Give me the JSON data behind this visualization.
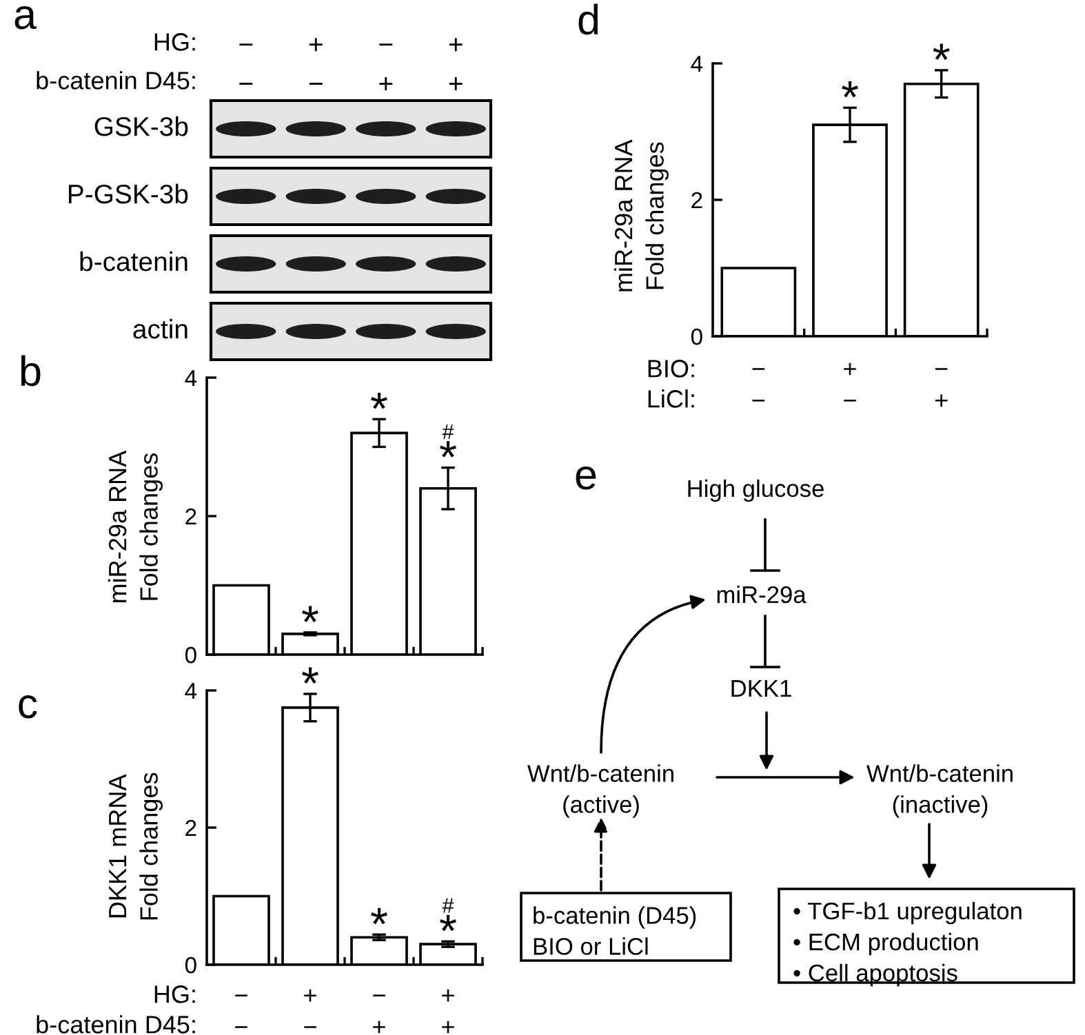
{
  "chart_data": [
    {
      "type": "other",
      "title": "a",
      "categories": [
        "−\n−",
        "+\n−",
        "−\n+",
        "+\n+"
      ],
      "y_categories": [
        "GSK-3b",
        "P-GSK-3b",
        "b-catenin",
        "actin"
      ],
      "annotations": [
        "HG:",
        "b-catenin D45:"
      ]
    },
    {
      "type": "bar",
      "title": "b",
      "categories": [
        "−\n−",
        "+\n−",
        "−\n+",
        "+\n+"
      ],
      "values": [
        1.0,
        0.3,
        3.2,
        2.4
      ],
      "errors": [
        null,
        0.02,
        0.2,
        0.3
      ],
      "color": "#ffffff",
      "ylabel": "miR-29a RNA\nFold changes",
      "ylim": [
        0,
        4
      ],
      "yticks": [
        0,
        2,
        4
      ],
      "tick_labels": "y",
      "annotations": [
        {
          "text": "*",
          "x": "+\n−",
          "y": 0.3
        },
        {
          "text": "*",
          "x": "−\n+",
          "y": 3.2
        },
        {
          "text": "*",
          "x": "+\n+",
          "y": 2.4
        },
        {
          "text": "#",
          "x": "+\n+",
          "y": 2.4
        }
      ]
    },
    {
      "type": "bar",
      "title": "c",
      "categories": [
        "−\n−",
        "+\n−",
        "−\n+",
        "+\n+"
      ],
      "values": [
        1.0,
        3.75,
        0.4,
        0.3
      ],
      "errors": [
        null,
        0.2,
        0.04,
        0.04
      ],
      "color": "#ffffff",
      "ylabel": "DKK1 mRNA\nFold changes",
      "ylim": [
        0,
        4
      ],
      "yticks": [
        0,
        2,
        4
      ],
      "annotations": [
        {
          "text": "*",
          "x": "+\n−",
          "y": 3.75
        },
        {
          "text": "*",
          "x": "−\n+",
          "y": 0.4
        },
        {
          "text": "*",
          "x": "+\n+",
          "y": 0.3
        },
        {
          "text": "#",
          "x": "+\n+",
          "y": 0.3
        },
        "HG:",
        "b-catenin D45:"
      ]
    },
    {
      "type": "bar",
      "title": "d",
      "categories": [
        "−\n−",
        "+\n−",
        "−\n+"
      ],
      "values": [
        1.0,
        3.1,
        3.7
      ],
      "errors": [
        null,
        0.25,
        0.2
      ],
      "color": "#ffffff",
      "ylabel": "miR-29a RNA\nFold changes",
      "ylim": [
        0,
        4
      ],
      "yticks": [
        0,
        2,
        4
      ],
      "annotations": [
        {
          "text": "*",
          "x": "+\n−",
          "y": 3.1
        },
        {
          "text": "*",
          "x": "−\n+",
          "y": 3.7
        },
        "BIO:",
        "LiCl:"
      ]
    },
    {
      "type": "other",
      "title": "e",
      "annotations": [
        "High glucose",
        "miR-29a",
        "DKK1",
        "Wnt/b-catenin\n(active)",
        "Wnt/b-catenin\n(inactive)",
        "b-catenin (D45)\nBIO or LiCl",
        "• TGF-b1 upregulaton\n• ECM production\n• Cell apoptosis"
      ]
    }
  ]
}
